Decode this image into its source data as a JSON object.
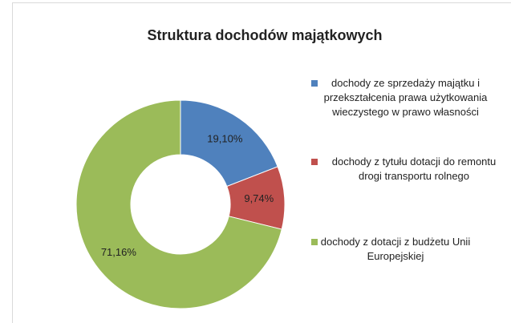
{
  "chart_data": {
    "type": "pie",
    "title": "Struktura dochodów majątkowych",
    "categories": [
      "dochody ze sprzedaży majątku i przekształcenia prawa użytkowania wieczystego w prawo własności",
      "dochody z tytułu dotacji do remontu drogi transportu rolnego",
      "dochody z dotacji z budżetu Unii Europejskiej"
    ],
    "values": [
      19.1,
      9.74,
      71.16
    ],
    "value_labels": [
      "19,10%",
      "9,74%",
      "71,16%"
    ],
    "colors": [
      "#4f81bd",
      "#c0504d",
      "#9bbb59"
    ],
    "donut": true,
    "legend": "right"
  }
}
